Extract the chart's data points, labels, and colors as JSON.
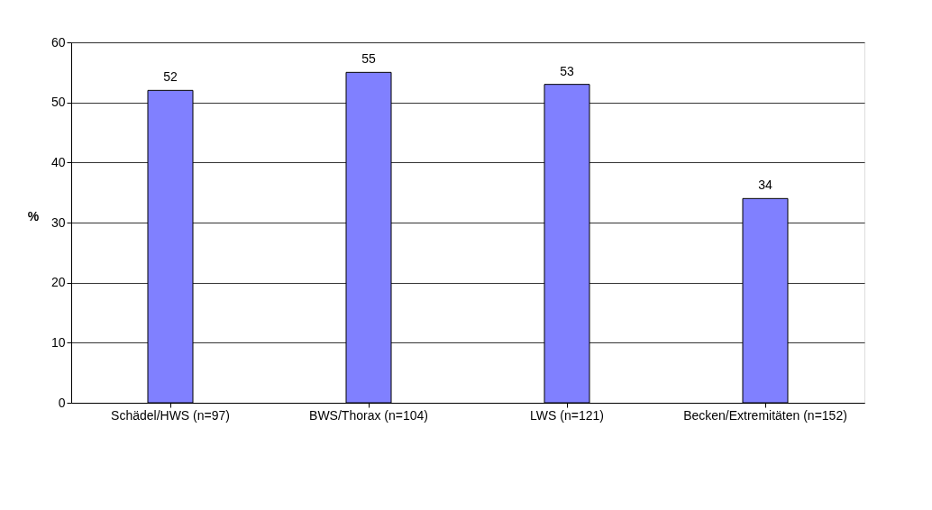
{
  "chart_data": {
    "type": "bar",
    "ylabel": "%",
    "categories": [
      "Schädel/HWS (n=97)",
      "BWS/Thorax (n=104)",
      "LWS (n=121)",
      "Becken/Extremitäten (n=152)"
    ],
    "values": [
      52,
      55,
      53,
      34
    ],
    "color": "#8080ff",
    "ylim": [
      0,
      60
    ],
    "yticks": [
      0,
      10,
      20,
      30,
      40,
      50,
      60
    ],
    "grid": "y",
    "data_labels": true
  }
}
